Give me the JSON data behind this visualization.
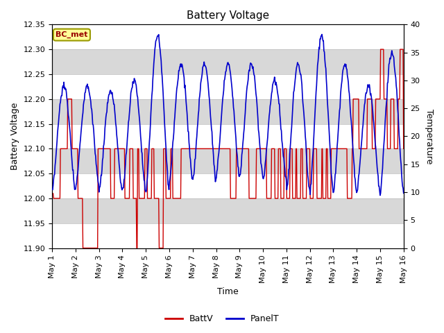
{
  "title": "Battery Voltage",
  "xlabel": "Time",
  "ylabel_left": "Battery Voltage",
  "ylabel_right": "Temperature",
  "annotation": "BC_met",
  "ylim_left": [
    11.9,
    12.35
  ],
  "ylim_right": [
    0,
    40
  ],
  "yticks_left": [
    11.9,
    11.95,
    12.0,
    12.05,
    12.1,
    12.15,
    12.2,
    12.25,
    12.3,
    12.35
  ],
  "yticks_right": [
    0,
    5,
    10,
    15,
    20,
    25,
    30,
    35,
    40
  ],
  "xtick_labels": [
    "May 1",
    "May 2",
    "May 3",
    "May 4",
    "May 5",
    "May 6",
    "May 7",
    "May 8",
    "May 9",
    "May 10",
    "May 11",
    "May 12",
    "May 13",
    "May 14",
    "May 15",
    "May 16"
  ],
  "batt_color": "#cc0000",
  "panel_color": "#0000cc",
  "legend_batt": "BattV",
  "legend_panel": "PanelT",
  "annotation_bg": "#ffff99",
  "annotation_border": "#999900",
  "annotation_text_color": "#990000",
  "bg_white": "#ffffff",
  "bg_gray": "#d8d8d8",
  "grid_color": "#bbbbbb",
  "title_fontsize": 11,
  "axis_fontsize": 9,
  "tick_fontsize": 8
}
